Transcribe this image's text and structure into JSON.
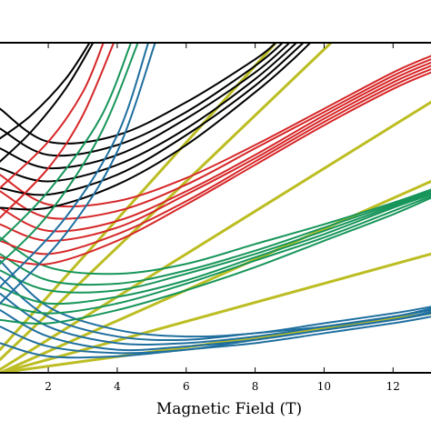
{
  "chart_data": {
    "type": "line",
    "title": "",
    "xlabel": "Magnetic Field (T)",
    "ylabel": "",
    "xlim": [
      0.6,
      13.1
    ],
    "ylim": [
      0,
      1
    ],
    "x_ticks": [
      2,
      4,
      6,
      8,
      10,
      12
    ],
    "x_tick_labels": [
      "2",
      "4",
      "6",
      "8",
      "10",
      "12"
    ],
    "grid": false,
    "legend": "none",
    "colors": {
      "yellow": "#bcbd22",
      "blue": "#1f6f9f",
      "green": "#17955a",
      "red": "#d62728",
      "black": "#000000"
    },
    "series_groups": [
      {
        "color_key": "yellow",
        "lines": [
          {
            "x": [
              0.6,
              13.1
            ],
            "y": [
              0.0,
              0.18
            ]
          },
          {
            "x": [
              0.6,
              13.1
            ],
            "y": [
              0.0,
              0.36
            ]
          },
          {
            "x": [
              0.6,
              13.1
            ],
            "y": [
              0.0,
              0.58
            ]
          },
          {
            "x": [
              0.6,
              13.1
            ],
            "y": [
              0.01,
              0.82
            ]
          },
          {
            "x": [
              0.6,
              10.2
            ],
            "y": [
              0.04,
              1.0
            ]
          },
          {
            "x": [
              0.6,
              8.6
            ],
            "y": [
              0.07,
              1.0
            ]
          }
        ]
      },
      {
        "color_key": "blue",
        "lines": [
          {
            "x": [
              0.6,
              2.0,
              4.0,
              6.0,
              8.0,
              10.0,
              12.0,
              13.1
            ],
            "y": [
              0.09,
              0.05,
              0.05,
              0.07,
              0.09,
              0.12,
              0.15,
              0.17
            ]
          },
          {
            "x": [
              0.6,
              2.0,
              4.0,
              6.0,
              8.0,
              10.0,
              12.0,
              13.1
            ],
            "y": [
              0.14,
              0.08,
              0.06,
              0.07,
              0.1,
              0.13,
              0.16,
              0.18
            ]
          },
          {
            "x": [
              0.6,
              2.0,
              4.0,
              6.0,
              8.0,
              10.0,
              12.0,
              13.1
            ],
            "y": [
              0.19,
              0.11,
              0.07,
              0.08,
              0.1,
              0.13,
              0.16,
              0.185
            ]
          },
          {
            "x": [
              0.6,
              2.0,
              4.0,
              6.0,
              8.0,
              10.0,
              12.0,
              13.1
            ],
            "y": [
              0.24,
              0.14,
              0.09,
              0.09,
              0.11,
              0.14,
              0.17,
              0.19
            ]
          },
          {
            "x": [
              0.6,
              2.0,
              4.0,
              6.0,
              8.0,
              10.0,
              12.0,
              13.1
            ],
            "y": [
              0.29,
              0.17,
              0.11,
              0.1,
              0.12,
              0.14,
              0.17,
              0.195
            ]
          },
          {
            "x": [
              0.6,
              2.0,
              4.0,
              6.0,
              8.0,
              10.0,
              12.0,
              13.1
            ],
            "y": [
              0.34,
              0.2,
              0.13,
              0.11,
              0.12,
              0.15,
              0.18,
              0.2
            ]
          }
        ]
      },
      {
        "color_key": "green",
        "lines": [
          {
            "x": [
              0.6,
              2.0,
              4.0,
              6.0,
              8.0,
              10.0,
              12.0,
              13.1
            ],
            "y": [
              0.16,
              0.15,
              0.19,
              0.25,
              0.32,
              0.4,
              0.48,
              0.53
            ]
          },
          {
            "x": [
              0.6,
              2.0,
              4.0,
              6.0,
              8.0,
              10.0,
              12.0,
              13.1
            ],
            "y": [
              0.21,
              0.18,
              0.21,
              0.27,
              0.34,
              0.41,
              0.49,
              0.535
            ]
          },
          {
            "x": [
              0.6,
              2.0,
              4.0,
              6.0,
              8.0,
              10.0,
              12.0,
              13.1
            ],
            "y": [
              0.26,
              0.21,
              0.23,
              0.28,
              0.35,
              0.42,
              0.5,
              0.54
            ]
          },
          {
            "x": [
              0.6,
              2.0,
              4.0,
              6.0,
              8.0,
              10.0,
              12.0,
              13.1
            ],
            "y": [
              0.31,
              0.25,
              0.25,
              0.3,
              0.36,
              0.43,
              0.505,
              0.545
            ]
          },
          {
            "x": [
              0.6,
              2.0,
              4.0,
              6.0,
              8.0,
              10.0,
              12.0,
              13.1
            ],
            "y": [
              0.36,
              0.28,
              0.27,
              0.31,
              0.37,
              0.44,
              0.51,
              0.55
            ]
          },
          {
            "x": [
              0.6,
              2.0,
              4.0,
              6.0,
              8.0,
              10.0,
              12.0,
              13.1
            ],
            "y": [
              0.41,
              0.32,
              0.3,
              0.33,
              0.39,
              0.45,
              0.515,
              0.555
            ]
          }
        ]
      },
      {
        "color_key": "red",
        "lines": [
          {
            "x": [
              0.6,
              2.0,
              4.0,
              6.0,
              8.0,
              10.0,
              12.0,
              13.1
            ],
            "y": [
              0.35,
              0.33,
              0.4,
              0.51,
              0.63,
              0.75,
              0.86,
              0.91
            ]
          },
          {
            "x": [
              0.6,
              2.0,
              4.0,
              6.0,
              8.0,
              10.0,
              12.0,
              13.1
            ],
            "y": [
              0.4,
              0.36,
              0.42,
              0.52,
              0.64,
              0.76,
              0.87,
              0.92
            ]
          },
          {
            "x": [
              0.6,
              2.0,
              4.0,
              6.0,
              8.0,
              10.0,
              12.0,
              13.1
            ],
            "y": [
              0.45,
              0.4,
              0.44,
              0.54,
              0.65,
              0.77,
              0.88,
              0.93
            ]
          },
          {
            "x": [
              0.6,
              2.0,
              4.0,
              6.0,
              8.0,
              10.0,
              12.0,
              13.1
            ],
            "y": [
              0.5,
              0.43,
              0.46,
              0.55,
              0.66,
              0.78,
              0.89,
              0.94
            ]
          },
          {
            "x": [
              0.6,
              2.0,
              4.0,
              6.0,
              8.0,
              10.0,
              12.0,
              13.1
            ],
            "y": [
              0.55,
              0.47,
              0.49,
              0.57,
              0.68,
              0.79,
              0.9,
              0.95
            ]
          },
          {
            "x": [
              0.6,
              2.0,
              4.0,
              6.0,
              8.0,
              10.0,
              12.0,
              13.1
            ],
            "y": [
              0.6,
              0.51,
              0.52,
              0.59,
              0.69,
              0.8,
              0.91,
              0.96
            ]
          }
        ]
      },
      {
        "color_key": "black",
        "lines": [
          {
            "x": [
              0.6,
              2.0,
              4.0,
              6.0,
              8.0,
              9.0,
              9.6
            ],
            "y": [
              0.5,
              0.5,
              0.57,
              0.69,
              0.85,
              0.94,
              1.0
            ]
          },
          {
            "x": [
              0.6,
              2.0,
              4.0,
              6.0,
              8.0,
              9.4
            ],
            "y": [
              0.56,
              0.54,
              0.6,
              0.72,
              0.87,
              1.0
            ]
          },
          {
            "x": [
              0.6,
              2.0,
              4.0,
              6.0,
              8.0,
              9.2
            ],
            "y": [
              0.62,
              0.58,
              0.63,
              0.74,
              0.89,
              1.0
            ]
          },
          {
            "x": [
              0.6,
              2.0,
              4.0,
              6.0,
              8.0,
              9.0
            ],
            "y": [
              0.68,
              0.62,
              0.66,
              0.77,
              0.91,
              1.0
            ]
          },
          {
            "x": [
              0.6,
              2.0,
              4.0,
              6.0,
              8.0,
              8.8
            ],
            "y": [
              0.74,
              0.66,
              0.69,
              0.79,
              0.93,
              1.0
            ]
          },
          {
            "x": [
              0.6,
              2.0,
              4.0,
              6.0,
              8.0,
              8.6
            ],
            "y": [
              0.8,
              0.7,
              0.72,
              0.82,
              0.95,
              1.0
            ]
          },
          {
            "x": [
              0.6,
              1.5,
              2.5,
              3.2
            ],
            "y": [
              0.71,
              0.78,
              0.89,
              1.0
            ]
          },
          {
            "x": [
              0.6,
              1.5,
              2.5,
              3.3
            ],
            "y": [
              0.64,
              0.73,
              0.86,
              1.0
            ]
          }
        ]
      },
      {
        "color_key": "red",
        "lines": [
          {
            "x": [
              0.6,
              2.0,
              3.0,
              3.6
            ],
            "y": [
              0.56,
              0.7,
              0.85,
              1.0
            ]
          },
          {
            "x": [
              0.6,
              2.0,
              3.0,
              3.9
            ],
            "y": [
              0.47,
              0.62,
              0.78,
              1.0
            ]
          }
        ]
      },
      {
        "color_key": "green",
        "lines": [
          {
            "x": [
              0.6,
              2.0,
              3.5,
              4.4
            ],
            "y": [
              0.4,
              0.55,
              0.77,
              1.0
            ]
          },
          {
            "x": [
              0.6,
              2.0,
              3.5,
              4.6
            ],
            "y": [
              0.33,
              0.48,
              0.72,
              1.0
            ]
          }
        ]
      },
      {
        "color_key": "blue",
        "lines": [
          {
            "x": [
              0.6,
              2.5,
              4.0,
              4.9
            ],
            "y": [
              0.26,
              0.47,
              0.72,
              1.0
            ]
          },
          {
            "x": [
              0.6,
              2.5,
              4.0,
              5.1
            ],
            "y": [
              0.21,
              0.42,
              0.67,
              1.0
            ]
          }
        ]
      }
    ]
  }
}
